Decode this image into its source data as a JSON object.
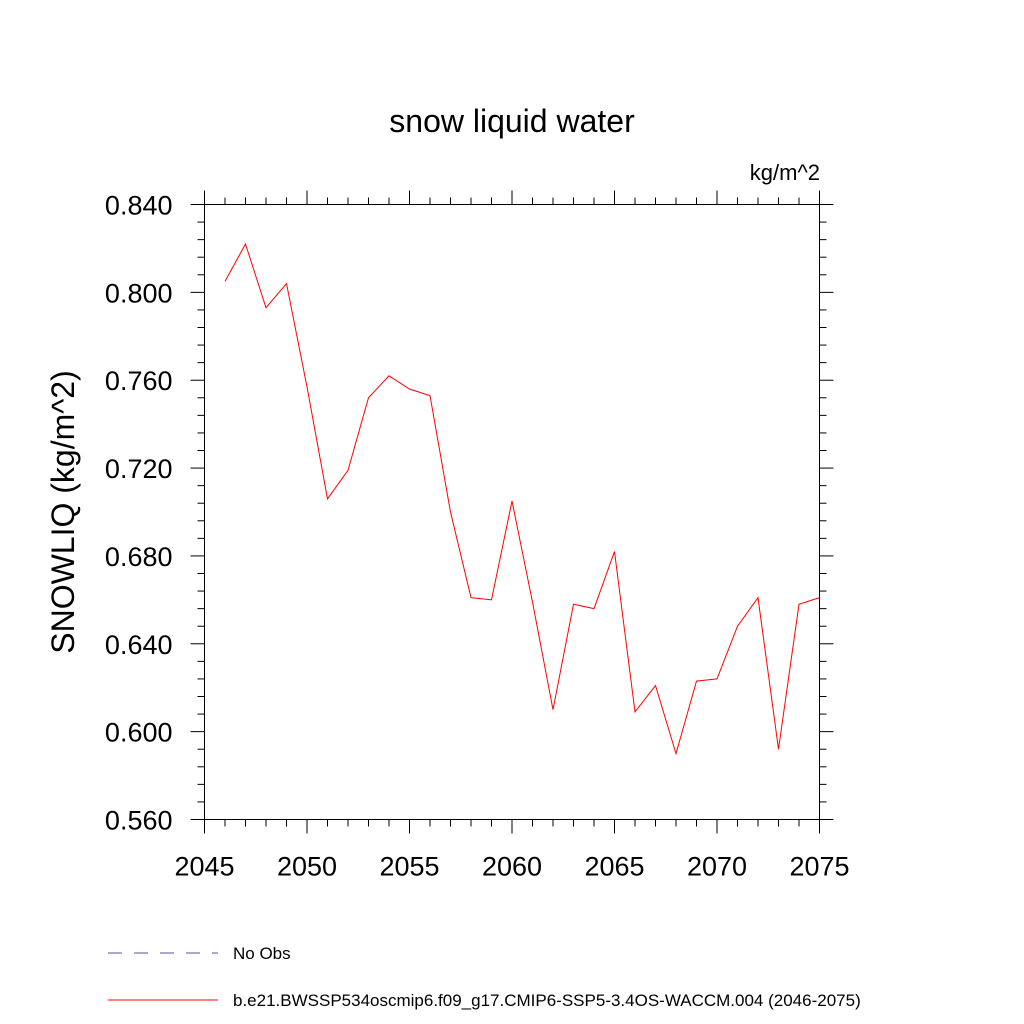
{
  "chart_data": {
    "type": "line",
    "title": "snow liquid water",
    "units_label": "kg/m^2",
    "xlabel": "",
    "ylabel": "SNOWLIQ  (kg/m^2)",
    "xlim": [
      2045,
      2075
    ],
    "ylim": [
      0.56,
      0.84
    ],
    "x_ticks": [
      "2045",
      "2050",
      "2055",
      "2060",
      "2065",
      "2070",
      "2075"
    ],
    "y_ticks": [
      "0.560",
      "0.600",
      "0.640",
      "0.680",
      "0.720",
      "0.760",
      "0.800",
      "0.840"
    ],
    "series": [
      {
        "name": "b.e21.BWSSP534oscmip6.f09_g17.CMIP6-SSP5-3.4OS-WACCM.004 (2046-2075)",
        "color": "#ff0000",
        "x": [
          2046,
          2047,
          2048,
          2049,
          2050,
          2051,
          2052,
          2053,
          2054,
          2055,
          2056,
          2057,
          2058,
          2059,
          2060,
          2061,
          2062,
          2063,
          2064,
          2065,
          2066,
          2067,
          2068,
          2069,
          2070,
          2071,
          2072,
          2073,
          2074,
          2075
        ],
        "values": [
          0.805,
          0.822,
          0.793,
          0.804,
          0.757,
          0.706,
          0.719,
          0.752,
          0.762,
          0.756,
          0.753,
          0.7,
          0.661,
          0.66,
          0.705,
          0.659,
          0.61,
          0.658,
          0.656,
          0.682,
          0.609,
          0.621,
          0.59,
          0.623,
          0.624,
          0.648,
          0.661,
          0.592,
          0.658,
          0.661
        ]
      }
    ],
    "legend": [
      {
        "label": "No Obs",
        "color": "#5a4fa8",
        "style": "dashed"
      },
      {
        "label": "b.e21.BWSSP534oscmip6.f09_g17.CMIP6-SSP5-3.4OS-WACCM.004 (2046-2075)",
        "color": "#ff0000",
        "style": "solid"
      }
    ],
    "legend_position": "bottom-left",
    "grid": false
  }
}
